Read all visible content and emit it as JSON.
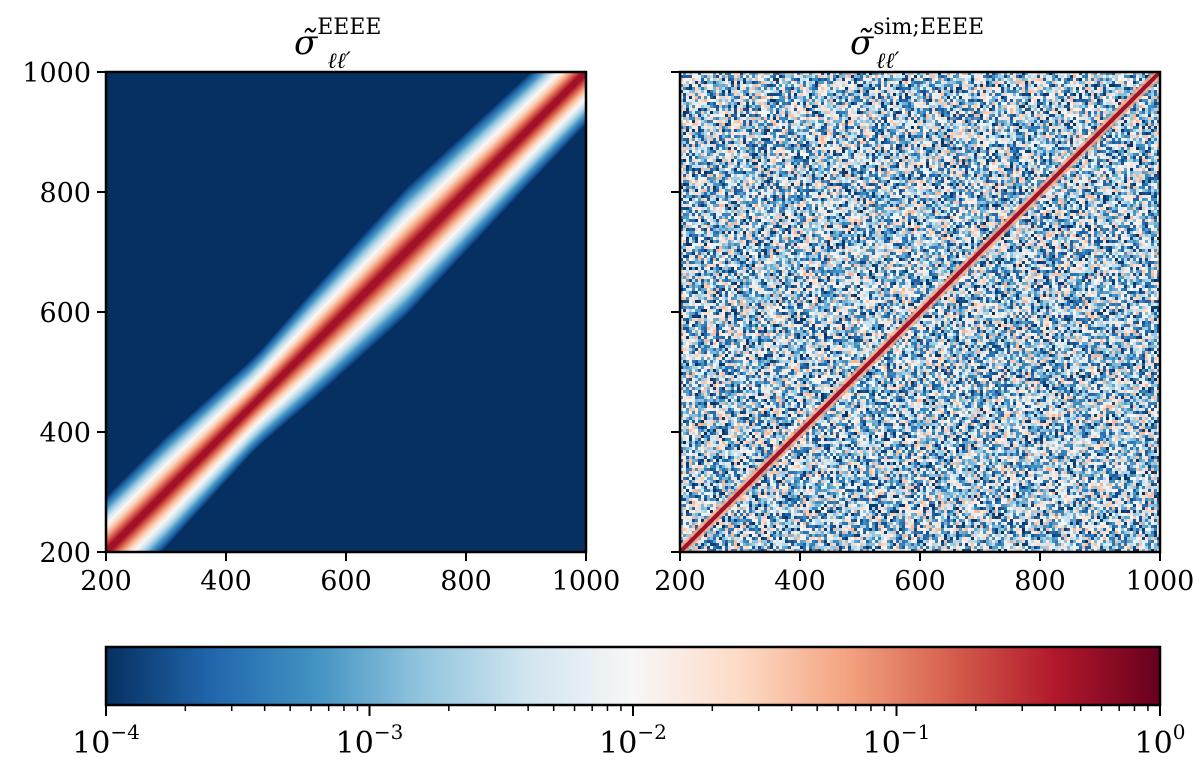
{
  "chart_data": [
    {
      "type": "heatmap",
      "panel": "left",
      "title": "σ̃",
      "title_sub": "ℓℓ′",
      "title_sup": "EEEE",
      "description": "smooth covariance band along the diagonal",
      "x_range": [
        200,
        1000
      ],
      "y_range": [
        200,
        1000
      ],
      "xticks": [
        200,
        400,
        600,
        800,
        1000
      ],
      "yticks": [
        200,
        400,
        600,
        800,
        1000
      ],
      "xticklabels": [
        "200",
        "400",
        "600",
        "800",
        "1000"
      ],
      "yticklabels": [
        "200",
        "400",
        "600",
        "800",
        "1000"
      ],
      "diagonal_value": 1.0,
      "background_value": 0.0001,
      "band_width_profile": [
        {
          "ell": 200,
          "width": 95
        },
        {
          "ell": 300,
          "width": 95
        },
        {
          "ell": 450,
          "width": 80
        },
        {
          "ell": 550,
          "width": 95
        },
        {
          "ell": 700,
          "width": 110
        },
        {
          "ell": 900,
          "width": 95
        },
        {
          "ell": 1000,
          "width": 90
        }
      ]
    },
    {
      "type": "heatmap",
      "panel": "right",
      "title": "σ̃",
      "title_sub": "ℓℓ′",
      "title_sup": "sim;EEEE",
      "description": "noisy simulated covariance with sharp diagonal",
      "x_range": [
        200,
        1000
      ],
      "y_range": [
        200,
        1000
      ],
      "xticks": [
        200,
        400,
        600,
        800,
        1000
      ],
      "xticklabels": [
        "200",
        "400",
        "600",
        "800",
        "1000"
      ],
      "yticks": [
        200,
        400,
        600,
        800,
        1000
      ],
      "yticklabels": [],
      "diagonal_value": 1.0,
      "noise_range": [
        0.0001,
        0.05
      ]
    }
  ],
  "colorbar": {
    "colormap": "RdBu_r",
    "scale": "log",
    "range": [
      0.0001,
      1
    ],
    "stops": [
      "#053061",
      "#2166ac",
      "#4393c3",
      "#92c5de",
      "#d1e5f0",
      "#f7f7f7",
      "#fddbc7",
      "#f4a582",
      "#d6604d",
      "#b2182b",
      "#67001f"
    ],
    "ticks": [
      {
        "value": 0.0001,
        "base": "10",
        "exp": "−4"
      },
      {
        "value": 0.001,
        "base": "10",
        "exp": "−3"
      },
      {
        "value": 0.01,
        "base": "10",
        "exp": "−2"
      },
      {
        "value": 0.1,
        "base": "10",
        "exp": "−1"
      },
      {
        "value": 1,
        "base": "10",
        "exp": "0"
      }
    ]
  }
}
